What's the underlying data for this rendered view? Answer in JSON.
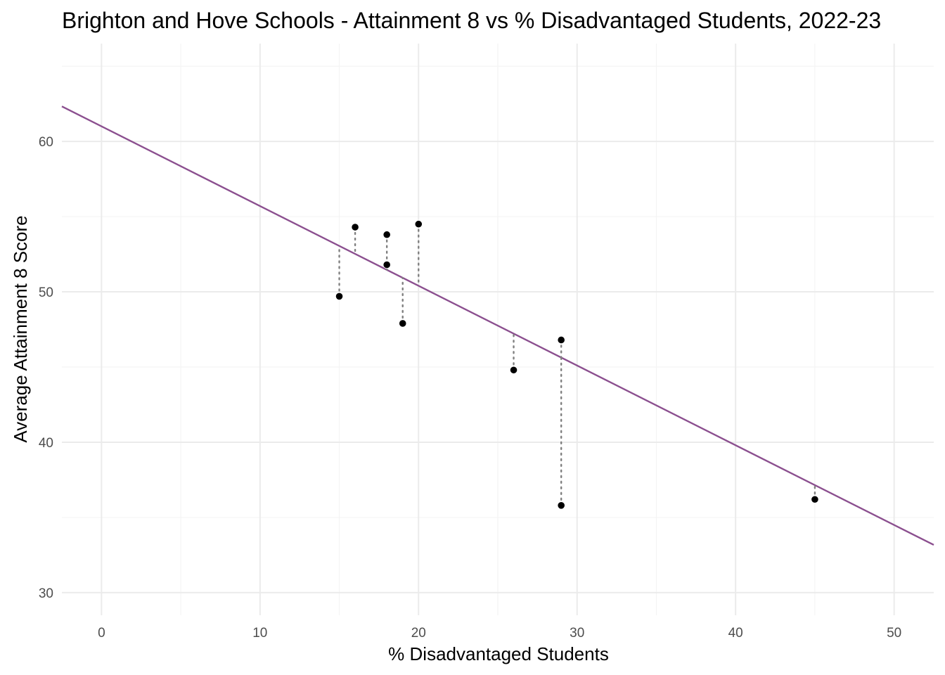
{
  "chart_data": {
    "type": "scatter",
    "title": "Brighton and Hove Schools - Attainment 8 vs % Disadvantaged Students, 2022-23",
    "xlabel": "% Disadvantaged Students",
    "ylabel": "Average Attainment 8 Score",
    "xlim": [
      -2.5,
      52.5
    ],
    "ylim": [
      28.5,
      66.5
    ],
    "x_ticks": [
      0,
      10,
      20,
      30,
      40,
      50
    ],
    "x_tick_labels": [
      "0",
      "10",
      "20",
      "30",
      "40",
      "50"
    ],
    "y_ticks": [
      30,
      40,
      50,
      60
    ],
    "y_tick_labels": [
      "30",
      "40",
      "50",
      "60"
    ],
    "grid": true,
    "points": [
      {
        "x": 15,
        "y": 49.7
      },
      {
        "x": 16,
        "y": 54.3
      },
      {
        "x": 18,
        "y": 53.8
      },
      {
        "x": 18,
        "y": 51.8
      },
      {
        "x": 19,
        "y": 47.9
      },
      {
        "x": 20,
        "y": 54.5
      },
      {
        "x": 26,
        "y": 44.8
      },
      {
        "x": 29,
        "y": 46.8
      },
      {
        "x": 29,
        "y": 35.8
      },
      {
        "x": 45,
        "y": 36.2
      }
    ],
    "trend_line": {
      "intercept": 61.0,
      "slope": -0.53
    },
    "show_residuals": true,
    "colors": {
      "trend": "#8b4f8f",
      "points": "#000000",
      "residuals": "#808080"
    }
  }
}
